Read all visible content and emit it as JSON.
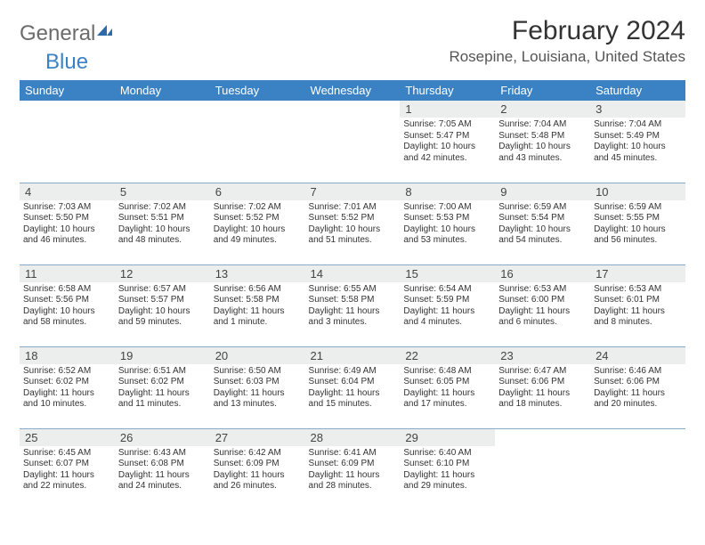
{
  "brand": {
    "part1": "General",
    "part2": "Blue"
  },
  "title": "February 2024",
  "location": "Rosepine, Louisiana, United States",
  "colors": {
    "header_bg": "#3b82c4",
    "daynum_bg": "#eceded",
    "cell_border": "#8aa9c4",
    "page_bg": "#ffffff"
  },
  "fonts": {
    "title_size": 30,
    "location_size": 17,
    "dow_size": 13,
    "daynum_size": 13,
    "detail_size": 10
  },
  "dow": [
    "Sunday",
    "Monday",
    "Tuesday",
    "Wednesday",
    "Thursday",
    "Friday",
    "Saturday"
  ],
  "weeks": [
    [
      null,
      null,
      null,
      null,
      {
        "n": "1",
        "sr": "Sunrise: 7:05 AM",
        "ss": "Sunset: 5:47 PM",
        "d1": "Daylight: 10 hours",
        "d2": "and 42 minutes."
      },
      {
        "n": "2",
        "sr": "Sunrise: 7:04 AM",
        "ss": "Sunset: 5:48 PM",
        "d1": "Daylight: 10 hours",
        "d2": "and 43 minutes."
      },
      {
        "n": "3",
        "sr": "Sunrise: 7:04 AM",
        "ss": "Sunset: 5:49 PM",
        "d1": "Daylight: 10 hours",
        "d2": "and 45 minutes."
      }
    ],
    [
      {
        "n": "4",
        "sr": "Sunrise: 7:03 AM",
        "ss": "Sunset: 5:50 PM",
        "d1": "Daylight: 10 hours",
        "d2": "and 46 minutes."
      },
      {
        "n": "5",
        "sr": "Sunrise: 7:02 AM",
        "ss": "Sunset: 5:51 PM",
        "d1": "Daylight: 10 hours",
        "d2": "and 48 minutes."
      },
      {
        "n": "6",
        "sr": "Sunrise: 7:02 AM",
        "ss": "Sunset: 5:52 PM",
        "d1": "Daylight: 10 hours",
        "d2": "and 49 minutes."
      },
      {
        "n": "7",
        "sr": "Sunrise: 7:01 AM",
        "ss": "Sunset: 5:52 PM",
        "d1": "Daylight: 10 hours",
        "d2": "and 51 minutes."
      },
      {
        "n": "8",
        "sr": "Sunrise: 7:00 AM",
        "ss": "Sunset: 5:53 PM",
        "d1": "Daylight: 10 hours",
        "d2": "and 53 minutes."
      },
      {
        "n": "9",
        "sr": "Sunrise: 6:59 AM",
        "ss": "Sunset: 5:54 PM",
        "d1": "Daylight: 10 hours",
        "d2": "and 54 minutes."
      },
      {
        "n": "10",
        "sr": "Sunrise: 6:59 AM",
        "ss": "Sunset: 5:55 PM",
        "d1": "Daylight: 10 hours",
        "d2": "and 56 minutes."
      }
    ],
    [
      {
        "n": "11",
        "sr": "Sunrise: 6:58 AM",
        "ss": "Sunset: 5:56 PM",
        "d1": "Daylight: 10 hours",
        "d2": "and 58 minutes."
      },
      {
        "n": "12",
        "sr": "Sunrise: 6:57 AM",
        "ss": "Sunset: 5:57 PM",
        "d1": "Daylight: 10 hours",
        "d2": "and 59 minutes."
      },
      {
        "n": "13",
        "sr": "Sunrise: 6:56 AM",
        "ss": "Sunset: 5:58 PM",
        "d1": "Daylight: 11 hours",
        "d2": "and 1 minute."
      },
      {
        "n": "14",
        "sr": "Sunrise: 6:55 AM",
        "ss": "Sunset: 5:58 PM",
        "d1": "Daylight: 11 hours",
        "d2": "and 3 minutes."
      },
      {
        "n": "15",
        "sr": "Sunrise: 6:54 AM",
        "ss": "Sunset: 5:59 PM",
        "d1": "Daylight: 11 hours",
        "d2": "and 4 minutes."
      },
      {
        "n": "16",
        "sr": "Sunrise: 6:53 AM",
        "ss": "Sunset: 6:00 PM",
        "d1": "Daylight: 11 hours",
        "d2": "and 6 minutes."
      },
      {
        "n": "17",
        "sr": "Sunrise: 6:53 AM",
        "ss": "Sunset: 6:01 PM",
        "d1": "Daylight: 11 hours",
        "d2": "and 8 minutes."
      }
    ],
    [
      {
        "n": "18",
        "sr": "Sunrise: 6:52 AM",
        "ss": "Sunset: 6:02 PM",
        "d1": "Daylight: 11 hours",
        "d2": "and 10 minutes."
      },
      {
        "n": "19",
        "sr": "Sunrise: 6:51 AM",
        "ss": "Sunset: 6:02 PM",
        "d1": "Daylight: 11 hours",
        "d2": "and 11 minutes."
      },
      {
        "n": "20",
        "sr": "Sunrise: 6:50 AM",
        "ss": "Sunset: 6:03 PM",
        "d1": "Daylight: 11 hours",
        "d2": "and 13 minutes."
      },
      {
        "n": "21",
        "sr": "Sunrise: 6:49 AM",
        "ss": "Sunset: 6:04 PM",
        "d1": "Daylight: 11 hours",
        "d2": "and 15 minutes."
      },
      {
        "n": "22",
        "sr": "Sunrise: 6:48 AM",
        "ss": "Sunset: 6:05 PM",
        "d1": "Daylight: 11 hours",
        "d2": "and 17 minutes."
      },
      {
        "n": "23",
        "sr": "Sunrise: 6:47 AM",
        "ss": "Sunset: 6:06 PM",
        "d1": "Daylight: 11 hours",
        "d2": "and 18 minutes."
      },
      {
        "n": "24",
        "sr": "Sunrise: 6:46 AM",
        "ss": "Sunset: 6:06 PM",
        "d1": "Daylight: 11 hours",
        "d2": "and 20 minutes."
      }
    ],
    [
      {
        "n": "25",
        "sr": "Sunrise: 6:45 AM",
        "ss": "Sunset: 6:07 PM",
        "d1": "Daylight: 11 hours",
        "d2": "and 22 minutes."
      },
      {
        "n": "26",
        "sr": "Sunrise: 6:43 AM",
        "ss": "Sunset: 6:08 PM",
        "d1": "Daylight: 11 hours",
        "d2": "and 24 minutes."
      },
      {
        "n": "27",
        "sr": "Sunrise: 6:42 AM",
        "ss": "Sunset: 6:09 PM",
        "d1": "Daylight: 11 hours",
        "d2": "and 26 minutes."
      },
      {
        "n": "28",
        "sr": "Sunrise: 6:41 AM",
        "ss": "Sunset: 6:09 PM",
        "d1": "Daylight: 11 hours",
        "d2": "and 28 minutes."
      },
      {
        "n": "29",
        "sr": "Sunrise: 6:40 AM",
        "ss": "Sunset: 6:10 PM",
        "d1": "Daylight: 11 hours",
        "d2": "and 29 minutes."
      },
      null,
      null
    ]
  ]
}
